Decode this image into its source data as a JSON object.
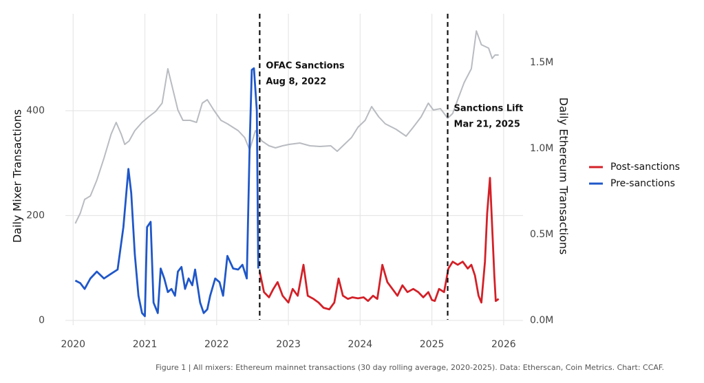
{
  "chart_data": {
    "type": "line",
    "y_label": "Daily Mixer Transactions",
    "y2_label": "Daily Ethereum Transactions",
    "caption": "Figure 1 | All mixers: Ethereum mainnet transactions (30 day rolling average, 2020-2025). Data: Etherscan, Coin Metrics. Chart: CCAF.",
    "xlim": [
      2019.7,
      2026.27
    ],
    "xticks": [
      2020,
      2021,
      2022,
      2023,
      2024,
      2025,
      2026
    ],
    "ylim": [
      -25,
      585
    ],
    "yticks": [
      0,
      200,
      400
    ],
    "y2lim": [
      -76000,
      1784000
    ],
    "y2ticks": [
      {
        "value": 0,
        "label": "0.0M"
      },
      {
        "value": 500000,
        "label": "0.5M"
      },
      {
        "value": 1000000,
        "label": "1.0M"
      },
      {
        "value": 1500000,
        "label": "1.5M"
      }
    ],
    "grid": true,
    "legend": "right",
    "annotations": [
      {
        "x": 2022.6,
        "lines": [
          "OFAC Sanctions",
          "Aug 8, 2022"
        ]
      },
      {
        "x": 2025.22,
        "lines": [
          "Sanctions Lift",
          "Mar 21, 2025"
        ]
      }
    ],
    "series": [
      {
        "color": "#b8bbc0",
        "axis": "y2",
        "x": [
          2020.03,
          2020.1,
          2020.16,
          2020.24,
          2020.33,
          2020.43,
          2020.53,
          2020.6,
          2020.67,
          2020.72,
          2020.78,
          2020.86,
          2020.96,
          2021.05,
          2021.15,
          2021.24,
          2021.32,
          2021.39,
          2021.46,
          2021.53,
          2021.63,
          2021.72,
          2021.8,
          2021.87,
          2021.96,
          2022.06,
          2022.15,
          2022.3,
          2022.39,
          2022.46,
          2022.54,
          2022.63,
          2022.73,
          2022.82,
          2022.92,
          2023.01,
          2023.16,
          2023.3,
          2023.44,
          2023.59,
          2023.68,
          2023.78,
          2023.88,
          2023.97,
          2024.07,
          2024.16,
          2024.26,
          2024.35,
          2024.5,
          2024.64,
          2024.74,
          2024.85,
          2024.95,
          2025.02,
          2025.12,
          2025.22,
          2025.29,
          2025.36,
          2025.45,
          2025.55,
          2025.62,
          2025.69,
          2025.79,
          2025.84,
          2025.88,
          2025.93
        ],
        "values": [
          564000,
          624000,
          704000,
          724000,
          816000,
          944000,
          1084000,
          1152000,
          1084000,
          1024000,
          1044000,
          1104000,
          1152000,
          1184000,
          1216000,
          1264000,
          1464000,
          1344000,
          1224000,
          1164000,
          1164000,
          1152000,
          1264000,
          1284000,
          1224000,
          1164000,
          1144000,
          1104000,
          1064000,
          992000,
          1104000,
          1044000,
          1016000,
          1004000,
          1016000,
          1024000,
          1032000,
          1016000,
          1012000,
          1016000,
          984000,
          1024000,
          1064000,
          1124000,
          1164000,
          1244000,
          1184000,
          1144000,
          1112000,
          1072000,
          1124000,
          1184000,
          1264000,
          1224000,
          1232000,
          1176000,
          1204000,
          1284000,
          1384000,
          1464000,
          1684000,
          1604000,
          1584000,
          1524000,
          1544000,
          1544000
        ]
      },
      {
        "name": "Post-sanctions",
        "color": "#d32027",
        "x": [
          2022.6,
          2022.66,
          2022.73,
          2022.79,
          2022.85,
          2022.92,
          2023.0,
          2023.06,
          2023.13,
          2023.21,
          2023.27,
          2023.35,
          2023.42,
          2023.49,
          2023.57,
          2023.64,
          2023.7,
          2023.76,
          2023.83,
          2023.89,
          2023.97,
          2024.05,
          2024.11,
          2024.18,
          2024.24,
          2024.31,
          2024.38,
          2024.45,
          2024.52,
          2024.59,
          2024.66,
          2024.74,
          2024.81,
          2024.88,
          2024.95,
          2025.0,
          2025.04,
          2025.1,
          2025.17,
          2025.23,
          2025.29,
          2025.36,
          2025.43,
          2025.5,
          2025.55,
          2025.6,
          2025.65,
          2025.69,
          2025.74,
          2025.77,
          2025.81,
          2025.84,
          2025.87,
          2025.89,
          2025.93
        ],
        "values": [
          93,
          54,
          44,
          60,
          73,
          47,
          34,
          60,
          47,
          106,
          47,
          41,
          34,
          24,
          21,
          34,
          80,
          47,
          41,
          44,
          42,
          44,
          37,
          47,
          41,
          106,
          73,
          60,
          47,
          67,
          54,
          60,
          54,
          44,
          54,
          39,
          37,
          60,
          54,
          99,
          112,
          106,
          112,
          99,
          106,
          86,
          47,
          34,
          112,
          204,
          272,
          178,
          86,
          37,
          41
        ]
      },
      {
        "name": "Pre-sanctions",
        "color": "#1f57c9",
        "x": [
          2020.03,
          2020.1,
          2020.16,
          2020.24,
          2020.33,
          2020.43,
          2020.53,
          2020.62,
          2020.7,
          2020.77,
          2020.81,
          2020.86,
          2020.91,
          2020.96,
          2021.0,
          2021.03,
          2021.08,
          2021.12,
          2021.18,
          2021.22,
          2021.27,
          2021.32,
          2021.37,
          2021.42,
          2021.46,
          2021.51,
          2021.56,
          2021.61,
          2021.66,
          2021.7,
          2021.77,
          2021.82,
          2021.87,
          2021.91,
          2021.98,
          2022.04,
          2022.09,
          2022.15,
          2022.23,
          2022.3,
          2022.36,
          2022.42,
          2022.46,
          2022.49,
          2022.52,
          2022.56,
          2022.58
        ],
        "values": [
          76,
          71,
          60,
          80,
          93,
          80,
          89,
          97,
          178,
          289,
          243,
          126,
          47,
          14,
          8,
          178,
          188,
          34,
          14,
          99,
          80,
          54,
          60,
          47,
          93,
          102,
          60,
          80,
          67,
          97,
          34,
          14,
          21,
          47,
          80,
          73,
          47,
          123,
          99,
          97,
          106,
          80,
          335,
          478,
          481,
          400,
          99
        ]
      }
    ]
  }
}
